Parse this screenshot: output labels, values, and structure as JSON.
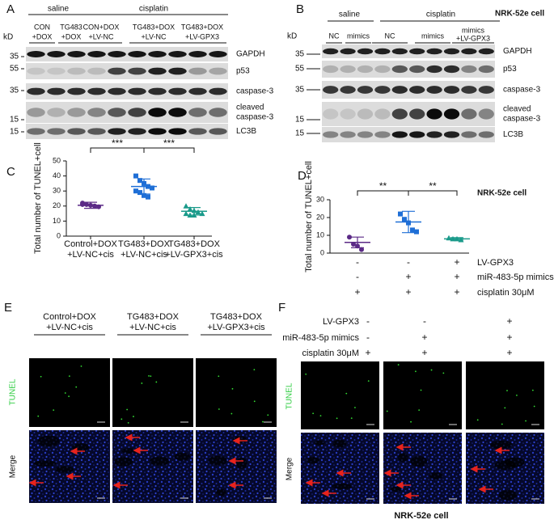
{
  "panel_a": {
    "label": "A",
    "groups": [
      "saline",
      "cisplatin"
    ],
    "kd": "kD",
    "lanes": [
      [
        "CON",
        "+DOX"
      ],
      [
        "TG483",
        "+DOX"
      ],
      [
        "CON+DOX",
        "+LV-NC"
      ],
      [
        "TG483+DOX",
        "+LV-NC"
      ],
      [
        "TG483+DOX",
        "+LV-GPX3"
      ]
    ],
    "markers": [
      35,
      55,
      35,
      15,
      15
    ],
    "proteins": [
      [
        "GAPDH"
      ],
      [
        "p53"
      ],
      [
        "caspase-3"
      ],
      [
        "cleaved",
        "caspase-3"
      ],
      [
        "LC3B"
      ]
    ]
  },
  "panel_b": {
    "label": "B",
    "groups": [
      "saline",
      "cisplatin"
    ],
    "cell_line": "NRK-52e cell",
    "kd": "kD",
    "lanes": [
      [
        "NC"
      ],
      [
        "mimics"
      ],
      [
        "NC"
      ],
      [
        "mimics"
      ],
      [
        "mimics",
        "+LV-GPX3"
      ]
    ],
    "markers": [
      35,
      55,
      35,
      15,
      15
    ],
    "proteins": [
      [
        "GAPDH"
      ],
      [
        "p53"
      ],
      [
        "caspase-3"
      ],
      [
        "cleaved",
        "caspase-3"
      ],
      [
        "LC3B"
      ]
    ]
  },
  "chart_data": [
    {
      "type": "scatter",
      "label": "C",
      "y_label": "Total number of TUNEL+cell",
      "categories": [
        [
          "Control+DOX",
          "+LV-NC+cis"
        ],
        [
          "TG483+DOX",
          "+LV-NC+cis"
        ],
        [
          "TG483+DOX",
          "+LV-GPX3+cis"
        ]
      ],
      "series": [
        {
          "color": "#5b2a86",
          "marker": "circle",
          "values": [
            22,
            21,
            20.5,
            20,
            19.5,
            21
          ],
          "mean": 20.5,
          "sd": 2
        },
        {
          "color": "#1f6fd6",
          "marker": "square",
          "values": [
            40,
            37,
            35,
            33,
            32,
            30,
            29,
            27,
            26
          ],
          "mean": 33,
          "sd": 5
        },
        {
          "color": "#1a9a8a",
          "marker": "triangle",
          "values": [
            20,
            18,
            17,
            16,
            15,
            15,
            14,
            14
          ],
          "mean": 16.5,
          "sd": 2.5
        }
      ],
      "ylim": [
        0,
        50
      ],
      "yticks": [
        0,
        10,
        20,
        30,
        40,
        50
      ],
      "significance": [
        "***",
        "***"
      ]
    },
    {
      "type": "scatter",
      "label": "D",
      "title": "NRK-52e cell",
      "y_label": "Total number of TUNEL+cell",
      "series": [
        {
          "color": "#5b2a86",
          "marker": "circle",
          "values": [
            9,
            5,
            4,
            2
          ],
          "mean": 6,
          "sd": 3
        },
        {
          "color": "#1f6fd6",
          "marker": "square",
          "values": [
            22,
            19,
            17,
            13,
            12
          ],
          "mean": 17.5,
          "sd": 6
        },
        {
          "color": "#1a9a8a",
          "marker": "triangle",
          "values": [
            8.5,
            8,
            8,
            7.5
          ],
          "mean": 8,
          "sd": 0.7
        }
      ],
      "ylim": [
        0,
        30
      ],
      "yticks": [
        0,
        10,
        20,
        30
      ],
      "significance": [
        "**",
        "**"
      ],
      "conditions": [
        {
          "name": "LV-GPX3",
          "signs": [
            "-",
            "-",
            "+"
          ]
        },
        {
          "name": "miR-483-5p mimics",
          "signs": [
            "-",
            "+",
            "+"
          ]
        },
        {
          "name": "cisplatin 30μM",
          "signs": [
            "+",
            "+",
            "+"
          ]
        }
      ]
    }
  ],
  "panel_e": {
    "label": "E",
    "columns": [
      [
        "Control+DOX",
        "+LV-NC+cis"
      ],
      [
        "TG483+DOX",
        "+LV-NC+cis"
      ],
      [
        "TG483+DOX",
        "+LV-GPX3+cis"
      ]
    ],
    "rows": [
      "TUNEL",
      "Merge"
    ]
  },
  "panel_f": {
    "label": "F",
    "conditions": [
      {
        "name": "LV-GPX3",
        "signs": [
          "-",
          "-",
          "+"
        ]
      },
      {
        "name": "miR-483-5p mimics",
        "signs": [
          "-",
          "+",
          "+"
        ]
      },
      {
        "name": "cisplatin 30μM",
        "signs": [
          "+",
          "+",
          "+"
        ]
      }
    ],
    "rows": [
      "TUNEL",
      "Merge"
    ],
    "cell_line": "NRK-52e cell"
  }
}
